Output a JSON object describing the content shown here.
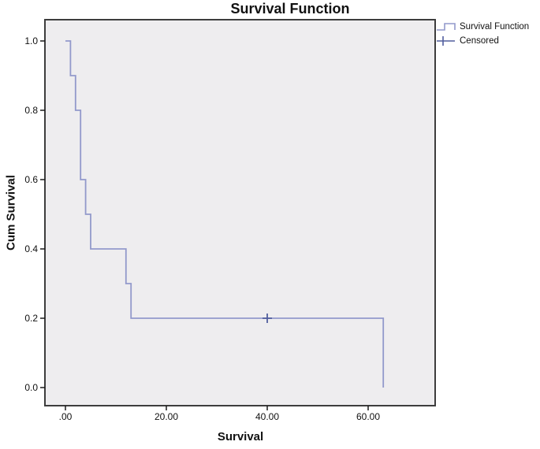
{
  "chart": {
    "title": "Survival Function",
    "x_axis": {
      "label": "Survival",
      "ticks": [
        {
          "value": 0,
          "label": ".00"
        },
        {
          "value": 20,
          "label": "20.00"
        },
        {
          "value": 40,
          "label": "40.00"
        },
        {
          "value": 60,
          "label": "60.00"
        }
      ]
    },
    "y_axis": {
      "label": "Cum Survival",
      "ticks": [
        {
          "value": 1.0,
          "label": "1.0"
        },
        {
          "value": 0.8,
          "label": "0.8"
        },
        {
          "value": 0.6,
          "label": "0.6"
        },
        {
          "value": 0.4,
          "label": "0.4"
        },
        {
          "value": 0.2,
          "label": "0.2"
        },
        {
          "value": 0.0,
          "label": "0.0"
        }
      ]
    },
    "legend": [
      {
        "label": "Survival Function",
        "icon": "step-line-icon"
      },
      {
        "label": "Censored",
        "icon": "plus-marker-icon"
      }
    ]
  },
  "chart_data": {
    "type": "line",
    "subtype": "kaplan-meier-step",
    "title": "Survival Function",
    "xlabel": "Survival",
    "ylabel": "Cum Survival",
    "xlim": [
      -4,
      73.3
    ],
    "ylim": [
      -0.055,
      1.061
    ],
    "x_tick_values": [
      0,
      20,
      40,
      60
    ],
    "y_tick_values": [
      1.0,
      0.8,
      0.6,
      0.4,
      0.2,
      0.0
    ],
    "grid": false,
    "legend_position": "top-right-outside",
    "series": [
      {
        "name": "Survival Function",
        "type": "step",
        "points": [
          [
            0,
            1.0
          ],
          [
            1,
            0.9
          ],
          [
            2,
            0.8
          ],
          [
            3,
            0.6
          ],
          [
            4,
            0.5
          ],
          [
            5,
            0.4
          ],
          [
            12,
            0.3
          ],
          [
            13,
            0.2
          ],
          [
            63,
            0.0
          ]
        ]
      },
      {
        "name": "Censored",
        "type": "plus-marker",
        "points": [
          [
            40,
            0.2
          ]
        ]
      }
    ],
    "colors": {
      "line": "#9299cb",
      "censored_marker": "#515e9e",
      "plot_background": "#eeedef",
      "frame": "#3d3d3d",
      "tick": "#1a1a1a",
      "text": "#111111"
    }
  }
}
